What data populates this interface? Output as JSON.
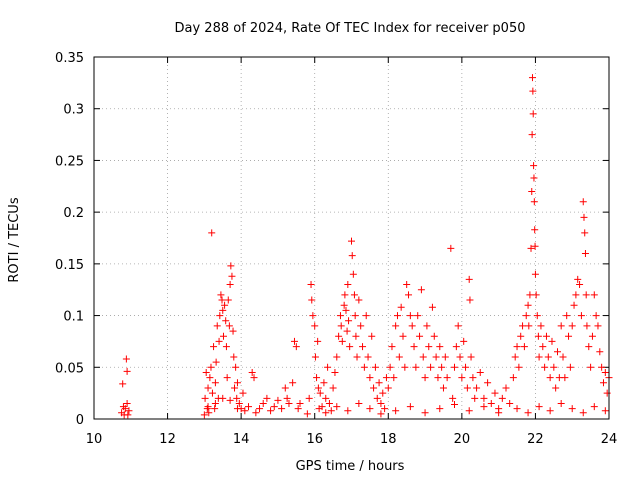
{
  "chart_data": {
    "type": "scatter",
    "title": "Day 288 of 2024, Rate Of TEC Index for receiver p050",
    "xlabel": "GPS time / hours",
    "ylabel": "ROTI / TECUs",
    "xlim": [
      10,
      24
    ],
    "ylim": [
      0,
      0.35
    ],
    "xticks": [
      10,
      12,
      14,
      16,
      18,
      20,
      22,
      24
    ],
    "yticks": [
      0,
      0.05,
      0.1,
      0.15,
      0.2,
      0.25,
      0.3,
      0.35
    ],
    "xtick_labels": [
      "10",
      "12",
      "14",
      "16",
      "18",
      "20",
      "22",
      "24"
    ],
    "ytick_labels": [
      "0",
      "0.05",
      "0.1",
      "0.15",
      "0.2",
      "0.25",
      "0.3",
      "0.35"
    ],
    "grid": true,
    "marker": "+",
    "color": "#ff0000",
    "points": [
      [
        10.75,
        0.006
      ],
      [
        10.78,
        0.034
      ],
      [
        10.8,
        0.012
      ],
      [
        10.82,
        0.004
      ],
      [
        10.85,
        0.01
      ],
      [
        10.88,
        0.058
      ],
      [
        10.9,
        0.046
      ],
      [
        10.9,
        0.015
      ],
      [
        10.92,
        0.004
      ],
      [
        10.95,
        0.008
      ],
      [
        13.0,
        0.004
      ],
      [
        13.02,
        0.02
      ],
      [
        13.05,
        0.045
      ],
      [
        13.08,
        0.01
      ],
      [
        13.1,
        0.03
      ],
      [
        13.12,
        0.006
      ],
      [
        13.15,
        0.04
      ],
      [
        13.18,
        0.05
      ],
      [
        13.2,
        0.18
      ],
      [
        13.22,
        0.025
      ],
      [
        13.25,
        0.07
      ],
      [
        13.28,
        0.01
      ],
      [
        13.3,
        0.035
      ],
      [
        13.32,
        0.055
      ],
      [
        13.35,
        0.09
      ],
      [
        13.38,
        0.02
      ],
      [
        13.4,
        0.075
      ],
      [
        13.42,
        0.1
      ],
      [
        13.45,
        0.12
      ],
      [
        13.48,
        0.115
      ],
      [
        13.5,
        0.105
      ],
      [
        13.52,
        0.08
      ],
      [
        13.55,
        0.11
      ],
      [
        13.58,
        0.095
      ],
      [
        13.6,
        0.07
      ],
      [
        13.62,
        0.04
      ],
      [
        13.65,
        0.115
      ],
      [
        13.68,
        0.09
      ],
      [
        13.7,
        0.13
      ],
      [
        13.72,
        0.148
      ],
      [
        13.75,
        0.138
      ],
      [
        13.78,
        0.085
      ],
      [
        13.8,
        0.06
      ],
      [
        13.82,
        0.03
      ],
      [
        13.85,
        0.05
      ],
      [
        13.88,
        0.02
      ],
      [
        13.9,
        0.035
      ],
      [
        13.95,
        0.015
      ],
      [
        14.0,
        0.01
      ],
      [
        14.05,
        0.025
      ],
      [
        13.1,
        0.012
      ],
      [
        13.3,
        0.015
      ],
      [
        13.5,
        0.02
      ],
      [
        13.7,
        0.018
      ],
      [
        13.9,
        0.01
      ],
      [
        14.1,
        0.008
      ],
      [
        14.2,
        0.012
      ],
      [
        14.3,
        0.045
      ],
      [
        14.35,
        0.04
      ],
      [
        14.4,
        0.006
      ],
      [
        14.5,
        0.01
      ],
      [
        14.6,
        0.015
      ],
      [
        14.7,
        0.02
      ],
      [
        14.8,
        0.008
      ],
      [
        14.9,
        0.012
      ],
      [
        15.0,
        0.018
      ],
      [
        15.1,
        0.01
      ],
      [
        15.2,
        0.03
      ],
      [
        15.25,
        0.02
      ],
      [
        15.3,
        0.015
      ],
      [
        15.4,
        0.035
      ],
      [
        15.45,
        0.075
      ],
      [
        15.5,
        0.07
      ],
      [
        15.55,
        0.01
      ],
      [
        15.6,
        0.015
      ],
      [
        15.8,
        0.005
      ],
      [
        15.85,
        0.02
      ],
      [
        15.9,
        0.13
      ],
      [
        15.92,
        0.115
      ],
      [
        15.95,
        0.1
      ],
      [
        16.0,
        0.09
      ],
      [
        16.02,
        0.06
      ],
      [
        16.05,
        0.04
      ],
      [
        16.08,
        0.075
      ],
      [
        16.1,
        0.03
      ],
      [
        16.12,
        0.01
      ],
      [
        16.15,
        0.025
      ],
      [
        16.2,
        0.012
      ],
      [
        16.25,
        0.035
      ],
      [
        16.3,
        0.02
      ],
      [
        16.35,
        0.05
      ],
      [
        16.4,
        0.015
      ],
      [
        16.45,
        0.008
      ],
      [
        16.5,
        0.03
      ],
      [
        16.55,
        0.045
      ],
      [
        16.6,
        0.06
      ],
      [
        16.65,
        0.08
      ],
      [
        16.7,
        0.1
      ],
      [
        16.72,
        0.09
      ],
      [
        16.75,
        0.075
      ],
      [
        16.8,
        0.11
      ],
      [
        16.82,
        0.12
      ],
      [
        16.85,
        0.105
      ],
      [
        16.88,
        0.085
      ],
      [
        16.9,
        0.13
      ],
      [
        16.92,
        0.095
      ],
      [
        16.95,
        0.07
      ],
      [
        17.0,
        0.172
      ],
      [
        17.02,
        0.158
      ],
      [
        17.05,
        0.14
      ],
      [
        17.08,
        0.12
      ],
      [
        17.1,
        0.1
      ],
      [
        17.12,
        0.08
      ],
      [
        17.15,
        0.06
      ],
      [
        17.2,
        0.115
      ],
      [
        17.25,
        0.09
      ],
      [
        17.3,
        0.07
      ],
      [
        17.35,
        0.05
      ],
      [
        17.4,
        0.1
      ],
      [
        17.45,
        0.06
      ],
      [
        17.5,
        0.04
      ],
      [
        17.55,
        0.08
      ],
      [
        17.6,
        0.03
      ],
      [
        17.65,
        0.05
      ],
      [
        17.7,
        0.02
      ],
      [
        17.75,
        0.035
      ],
      [
        17.8,
        0.015
      ],
      [
        17.85,
        0.025
      ],
      [
        17.9,
        0.01
      ],
      [
        17.95,
        0.04
      ],
      [
        16.3,
        0.006
      ],
      [
        16.6,
        0.012
      ],
      [
        16.9,
        0.008
      ],
      [
        17.2,
        0.015
      ],
      [
        17.5,
        0.01
      ],
      [
        17.8,
        0.005
      ],
      [
        18.0,
        0.03
      ],
      [
        18.05,
        0.05
      ],
      [
        18.1,
        0.07
      ],
      [
        18.15,
        0.04
      ],
      [
        18.2,
        0.09
      ],
      [
        18.25,
        0.1
      ],
      [
        18.3,
        0.06
      ],
      [
        18.35,
        0.108
      ],
      [
        18.4,
        0.08
      ],
      [
        18.45,
        0.05
      ],
      [
        18.5,
        0.13
      ],
      [
        18.55,
        0.12
      ],
      [
        18.6,
        0.1
      ],
      [
        18.65,
        0.09
      ],
      [
        18.7,
        0.07
      ],
      [
        18.75,
        0.05
      ],
      [
        18.8,
        0.1
      ],
      [
        18.85,
        0.08
      ],
      [
        18.9,
        0.125
      ],
      [
        18.95,
        0.06
      ],
      [
        19.0,
        0.04
      ],
      [
        19.05,
        0.09
      ],
      [
        19.1,
        0.07
      ],
      [
        19.15,
        0.05
      ],
      [
        19.2,
        0.108
      ],
      [
        19.25,
        0.08
      ],
      [
        19.3,
        0.06
      ],
      [
        19.35,
        0.04
      ],
      [
        19.4,
        0.07
      ],
      [
        19.45,
        0.05
      ],
      [
        19.5,
        0.03
      ],
      [
        19.55,
        0.06
      ],
      [
        19.6,
        0.04
      ],
      [
        19.7,
        0.165
      ],
      [
        19.75,
        0.02
      ],
      [
        19.8,
        0.05
      ],
      [
        19.85,
        0.07
      ],
      [
        19.9,
        0.09
      ],
      [
        19.95,
        0.06
      ],
      [
        20.0,
        0.04
      ],
      [
        20.05,
        0.075
      ],
      [
        20.1,
        0.05
      ],
      [
        20.15,
        0.03
      ],
      [
        20.2,
        0.135
      ],
      [
        20.22,
        0.115
      ],
      [
        20.25,
        0.06
      ],
      [
        20.3,
        0.04
      ],
      [
        20.35,
        0.02
      ],
      [
        20.4,
        0.03
      ],
      [
        20.5,
        0.045
      ],
      [
        20.6,
        0.02
      ],
      [
        20.7,
        0.035
      ],
      [
        20.8,
        0.015
      ],
      [
        20.9,
        0.025
      ],
      [
        21.0,
        0.01
      ],
      [
        21.1,
        0.02
      ],
      [
        21.2,
        0.03
      ],
      [
        21.3,
        0.015
      ],
      [
        18.2,
        0.008
      ],
      [
        18.6,
        0.012
      ],
      [
        19.0,
        0.006
      ],
      [
        19.4,
        0.01
      ],
      [
        19.8,
        0.014
      ],
      [
        20.2,
        0.008
      ],
      [
        20.6,
        0.012
      ],
      [
        21.0,
        0.006
      ],
      [
        21.4,
        0.04
      ],
      [
        21.45,
        0.06
      ],
      [
        21.5,
        0.07
      ],
      [
        21.55,
        0.05
      ],
      [
        21.6,
        0.08
      ],
      [
        21.65,
        0.09
      ],
      [
        21.7,
        0.07
      ],
      [
        21.75,
        0.1
      ],
      [
        21.8,
        0.11
      ],
      [
        21.82,
        0.09
      ],
      [
        21.85,
        0.12
      ],
      [
        21.88,
        0.165
      ],
      [
        21.9,
        0.22
      ],
      [
        21.91,
        0.275
      ],
      [
        21.92,
        0.33
      ],
      [
        21.93,
        0.317
      ],
      [
        21.94,
        0.295
      ],
      [
        21.95,
        0.245
      ],
      [
        21.96,
        0.233
      ],
      [
        21.97,
        0.21
      ],
      [
        21.98,
        0.183
      ],
      [
        21.99,
        0.167
      ],
      [
        22.0,
        0.14
      ],
      [
        22.02,
        0.12
      ],
      [
        22.05,
        0.1
      ],
      [
        22.08,
        0.08
      ],
      [
        22.1,
        0.06
      ],
      [
        22.15,
        0.09
      ],
      [
        22.2,
        0.07
      ],
      [
        22.25,
        0.05
      ],
      [
        22.3,
        0.08
      ],
      [
        22.35,
        0.06
      ],
      [
        22.4,
        0.04
      ],
      [
        22.45,
        0.075
      ],
      [
        22.5,
        0.05
      ],
      [
        22.55,
        0.03
      ],
      [
        22.6,
        0.065
      ],
      [
        22.65,
        0.04
      ],
      [
        22.7,
        0.09
      ],
      [
        22.75,
        0.06
      ],
      [
        22.8,
        0.04
      ],
      [
        22.85,
        0.1
      ],
      [
        22.9,
        0.08
      ],
      [
        22.95,
        0.05
      ],
      [
        23.0,
        0.09
      ],
      [
        23.05,
        0.11
      ],
      [
        23.1,
        0.12
      ],
      [
        23.15,
        0.135
      ],
      [
        23.2,
        0.13
      ],
      [
        23.25,
        0.1
      ],
      [
        23.3,
        0.21
      ],
      [
        23.32,
        0.195
      ],
      [
        23.34,
        0.18
      ],
      [
        23.36,
        0.16
      ],
      [
        23.38,
        0.12
      ],
      [
        23.4,
        0.09
      ],
      [
        23.45,
        0.07
      ],
      [
        23.5,
        0.05
      ],
      [
        23.55,
        0.08
      ],
      [
        23.6,
        0.12
      ],
      [
        23.65,
        0.1
      ],
      [
        23.7,
        0.09
      ],
      [
        23.75,
        0.065
      ],
      [
        23.8,
        0.05
      ],
      [
        23.85,
        0.035
      ],
      [
        23.9,
        0.045
      ],
      [
        23.95,
        0.025
      ],
      [
        24.0,
        0.04
      ],
      [
        21.5,
        0.01
      ],
      [
        21.8,
        0.006
      ],
      [
        22.1,
        0.012
      ],
      [
        22.4,
        0.008
      ],
      [
        22.7,
        0.015
      ],
      [
        23.0,
        0.01
      ],
      [
        23.3,
        0.006
      ],
      [
        23.6,
        0.012
      ],
      [
        23.9,
        0.008
      ]
    ]
  }
}
